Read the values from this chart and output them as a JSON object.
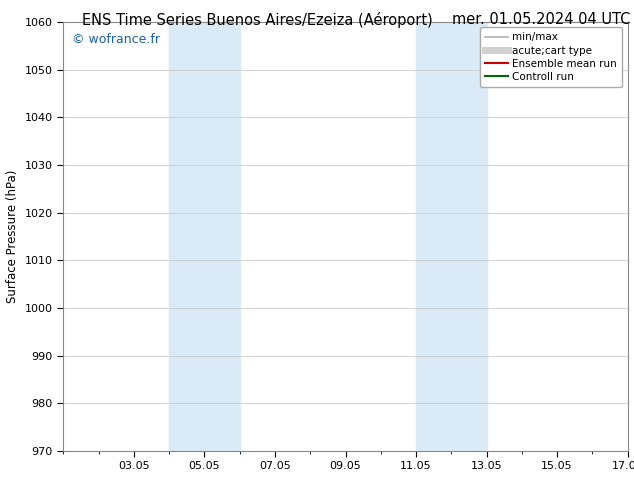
{
  "title_left": "ENS Time Series Buenos Aires/Ezeiza (Aéroport)",
  "title_right": "mer. 01.05.2024 04 UTC",
  "ylabel": "Surface Pressure (hPa)",
  "ylim": [
    970,
    1060
  ],
  "yticks": [
    970,
    980,
    990,
    1000,
    1010,
    1020,
    1030,
    1040,
    1050,
    1060
  ],
  "xlim": [
    1.0,
    17.0
  ],
  "xtick_positions": [
    3,
    5,
    7,
    9,
    11,
    13,
    15,
    17
  ],
  "xtick_labels": [
    "03.05",
    "05.05",
    "07.05",
    "09.05",
    "11.05",
    "13.05",
    "15.05",
    "17.05"
  ],
  "shaded_regions": [
    {
      "xmin": 4.0,
      "xmax": 6.0,
      "color": "#daeaf6"
    },
    {
      "xmin": 11.0,
      "xmax": 13.0,
      "color": "#daeaf6"
    }
  ],
  "watermark": "© wofrance.fr",
  "watermark_color": "#1a5fb4",
  "legend_items": [
    {
      "label": "min/max",
      "color": "#b0b0b0",
      "lw": 1.2
    },
    {
      "label": "acute;cart type",
      "color": "#d0d0d0",
      "lw": 5
    },
    {
      "label": "Ensemble mean run",
      "color": "#cc0000",
      "lw": 1.5
    },
    {
      "label": "Controll run",
      "color": "#006600",
      "lw": 1.5
    }
  ],
  "bg_color": "#ffffff",
  "plot_bg_color": "#ffffff",
  "grid_color": "#cccccc",
  "spine_color": "#888888",
  "title_fontsize": 10.5,
  "ylabel_fontsize": 8.5,
  "tick_fontsize": 8,
  "legend_fontsize": 7.5,
  "watermark_fontsize": 9
}
